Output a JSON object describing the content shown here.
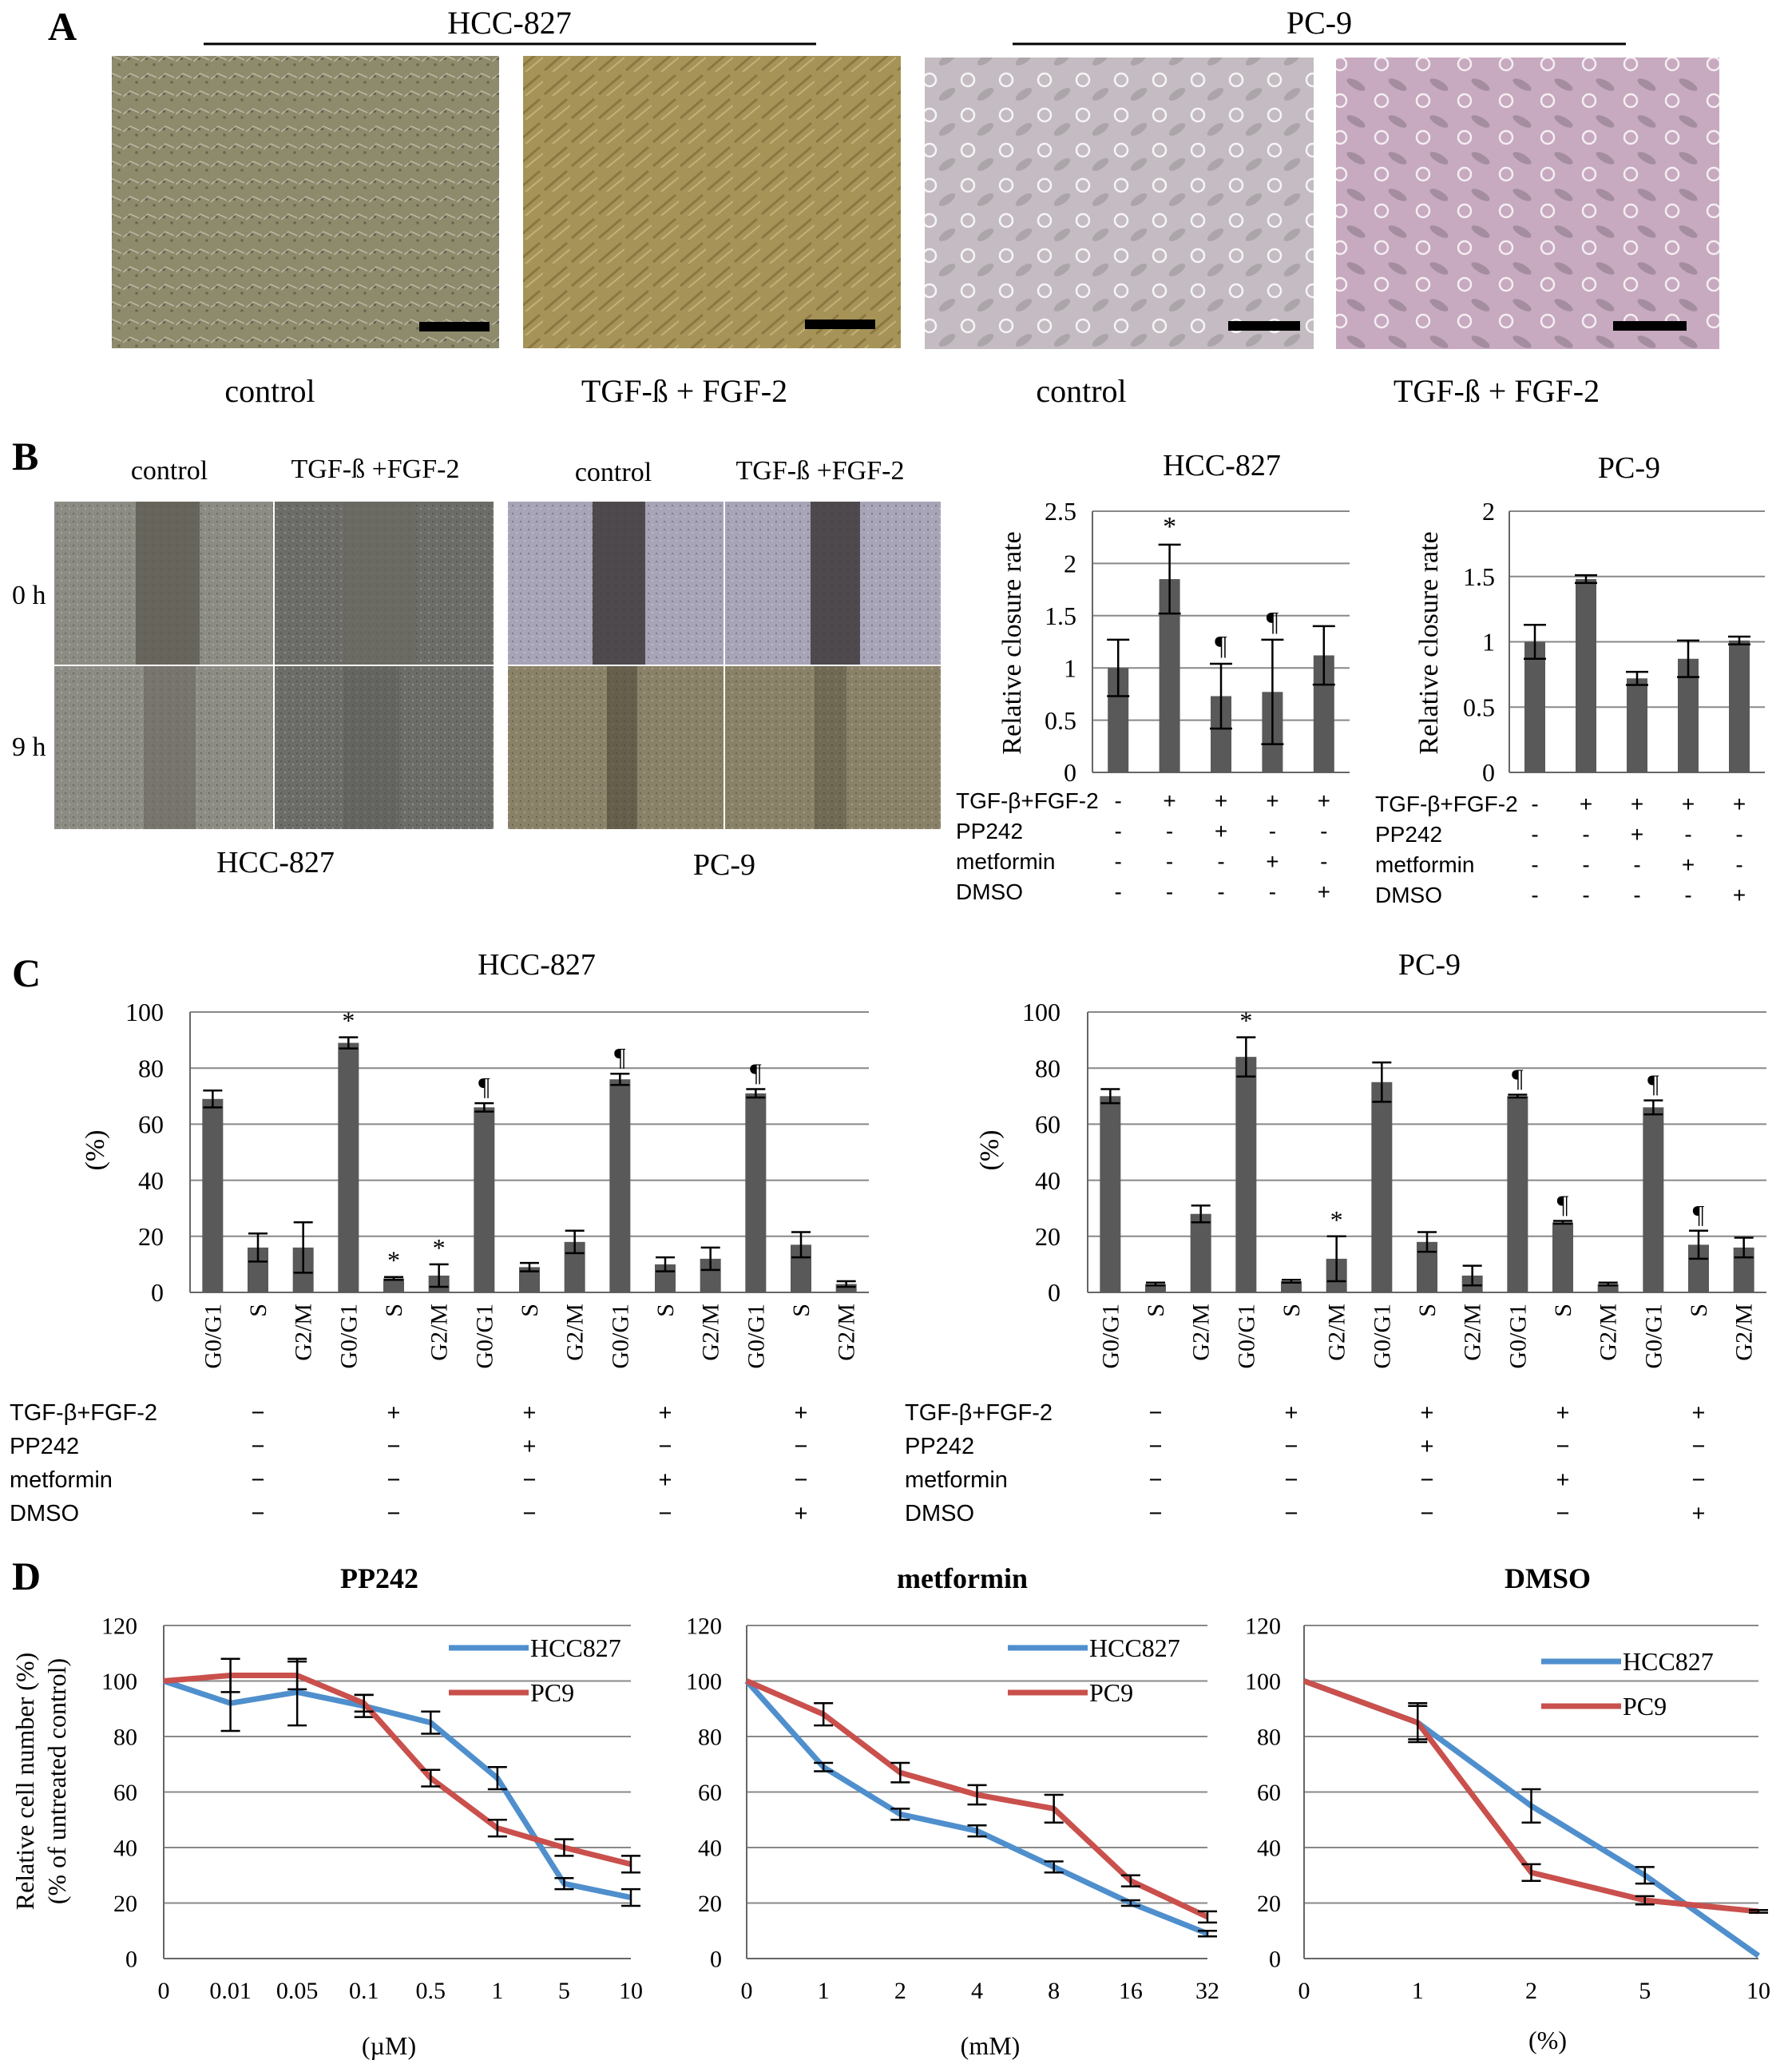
{
  "panel_a": {
    "letter": "A",
    "group_labels": [
      "HCC-827",
      "PC-9"
    ],
    "image_labels": [
      "control",
      "TGF-ß  + FGF-2",
      "control",
      "TGF-ß  + FGF-2"
    ],
    "image_colors": [
      "#8e8a6c",
      "#a69358",
      "#c4bcc2",
      "#c7aabf"
    ]
  },
  "panel_b": {
    "letter": "B",
    "col_labels": [
      "control",
      "TGF-ß +FGF-2",
      "control",
      "TGF-ß +FGF-2"
    ],
    "row_labels": [
      "0 h",
      "9 h"
    ],
    "group_labels": [
      "HCC-827",
      "PC-9"
    ],
    "image_colors": [
      "#8c8c84",
      "#6c6c68",
      "#a8a4b8",
      "#8a8268"
    ]
  },
  "panel_c": {
    "letter": "C"
  },
  "panel_d": {
    "letter": "D"
  },
  "chart_data": [
    {
      "type": "bar",
      "title": "HCC-827",
      "ylabel": "Relative closure rate",
      "ylim": [
        0,
        2.5
      ],
      "yticks": [
        "0",
        "0.5",
        "1",
        "1.5",
        "2",
        "2.5"
      ],
      "values": [
        1.0,
        1.85,
        0.73,
        0.77,
        1.12
      ],
      "errors": [
        0.27,
        0.33,
        0.31,
        0.5,
        0.28
      ],
      "annotations": [
        "",
        "*",
        "¶",
        "¶",
        ""
      ],
      "treatments": [
        {
          "label": "TGF-β+FGF-2",
          "signs": [
            "-",
            "+",
            "+",
            "+",
            "+"
          ]
        },
        {
          "label": "PP242",
          "signs": [
            "-",
            "-",
            "+",
            "-",
            "-"
          ]
        },
        {
          "label": "metformin",
          "signs": [
            "-",
            "-",
            "-",
            "+",
            "-"
          ]
        },
        {
          "label": "DMSO",
          "signs": [
            "-",
            "-",
            "-",
            "-",
            "+"
          ]
        }
      ]
    },
    {
      "type": "bar",
      "title": "PC-9",
      "ylabel": "Relative closure rate",
      "ylim": [
        0,
        2
      ],
      "yticks": [
        "0",
        "0.5",
        "1",
        "1.5",
        "2"
      ],
      "values": [
        1.0,
        1.48,
        0.72,
        0.87,
        1.01
      ],
      "errors": [
        0.13,
        0.03,
        0.05,
        0.14,
        0.03
      ],
      "annotations": [
        "",
        "",
        "",
        "",
        ""
      ],
      "treatments": [
        {
          "label": "TGF-β+FGF-2",
          "signs": [
            "-",
            "+",
            "+",
            "+",
            "+"
          ]
        },
        {
          "label": "PP242",
          "signs": [
            "-",
            "-",
            "+",
            "-",
            "-"
          ]
        },
        {
          "label": "metformin",
          "signs": [
            "-",
            "-",
            "-",
            "+",
            "-"
          ]
        },
        {
          "label": "DMSO",
          "signs": [
            "-",
            "-",
            "-",
            "-",
            "+"
          ]
        }
      ]
    },
    {
      "type": "bar",
      "title": "HCC-827",
      "ylabel": "(%)",
      "ylim": [
        0,
        100
      ],
      "yticks": [
        "0",
        "20",
        "40",
        "60",
        "80",
        "100"
      ],
      "categories": [
        "G0/G1",
        "S",
        "G2/M",
        "G0/G1",
        "S",
        "G2/M",
        "G0/G1",
        "S",
        "G2/M",
        "G0/G1",
        "S",
        "G2/M",
        "G0/G1",
        "S",
        "G2/M"
      ],
      "values": [
        69,
        16,
        16,
        89,
        5,
        6,
        66,
        9,
        18,
        76,
        10,
        12,
        71,
        17,
        3
      ],
      "errors": [
        3,
        5,
        9,
        2,
        0.5,
        4,
        1.5,
        1.5,
        4,
        2,
        2.5,
        4,
        1.5,
        4.5,
        1
      ],
      "annotations": [
        "",
        "",
        "",
        "*",
        "*",
        "*",
        "¶",
        "",
        "",
        "¶",
        "",
        "",
        "¶",
        "",
        ""
      ],
      "treatments": [
        {
          "label": "TGF-β+FGF-2",
          "signs": [
            "−",
            "+",
            "+",
            "+",
            "+"
          ]
        },
        {
          "label": "PP242",
          "signs": [
            "−",
            "−",
            "+",
            "−",
            "−"
          ]
        },
        {
          "label": "metformin",
          "signs": [
            "−",
            "−",
            "−",
            "+",
            "−"
          ]
        },
        {
          "label": "DMSO",
          "signs": [
            "−",
            "−",
            "−",
            "−",
            "+"
          ]
        }
      ]
    },
    {
      "type": "bar",
      "title": "PC-9",
      "ylabel": "(%)",
      "ylim": [
        0,
        100
      ],
      "yticks": [
        "0",
        "20",
        "40",
        "60",
        "80",
        "100"
      ],
      "categories": [
        "G0/G1",
        "S",
        "G2/M",
        "G0/G1",
        "S",
        "G2/M",
        "G0/G1",
        "S",
        "G2/M",
        "G0/G1",
        "S",
        "G2/M",
        "G0/G1",
        "S",
        "G2/M"
      ],
      "values": [
        70,
        3,
        28,
        84,
        4,
        12,
        75,
        18,
        6,
        70,
        25,
        3,
        66,
        17,
        16
      ],
      "errors": [
        2.5,
        0.5,
        3,
        7,
        0.5,
        8,
        7,
        3.5,
        3.5,
        0.5,
        0.5,
        0.5,
        2.5,
        5,
        3.5
      ],
      "annotations": [
        "",
        "",
        "",
        "*",
        "",
        "*",
        "",
        "",
        "",
        "¶",
        "¶",
        "",
        "¶",
        "¶",
        ""
      ],
      "treatments": [
        {
          "label": "TGF-β+FGF-2",
          "signs": [
            "−",
            "+",
            "+",
            "+",
            "+"
          ]
        },
        {
          "label": "PP242",
          "signs": [
            "−",
            "−",
            "+",
            "−",
            "−"
          ]
        },
        {
          "label": "metformin",
          "signs": [
            "−",
            "−",
            "−",
            "+",
            "−"
          ]
        },
        {
          "label": "DMSO",
          "signs": [
            "−",
            "−",
            "−",
            "−",
            "+"
          ]
        }
      ]
    },
    {
      "type": "line",
      "title": "PP242",
      "ylabel": "Relative cell number (%)",
      "ylabel2": "(% of untreated control)",
      "xlabel": "(µM)",
      "ylim": [
        0,
        120
      ],
      "yticks": [
        "0",
        "20",
        "40",
        "60",
        "80",
        "100",
        "120"
      ],
      "categories": [
        "0",
        "0.01",
        "0.05",
        "0.1",
        "0.5",
        "1",
        "5",
        "10"
      ],
      "series": [
        {
          "name": "HCC827",
          "color": "#4f8fcd",
          "values": [
            100,
            92,
            96,
            91,
            85,
            65,
            27,
            22
          ],
          "errors": [
            0,
            10,
            12,
            4,
            4,
            4,
            2,
            3
          ]
        },
        {
          "name": "PC9",
          "color": "#c9504c",
          "values": [
            100,
            102,
            102,
            92,
            65,
            47,
            40,
            34
          ],
          "errors": [
            0,
            6,
            5,
            3,
            3,
            3,
            3,
            3
          ]
        }
      ]
    },
    {
      "type": "line",
      "title": "metformin",
      "xlabel": "(mM)",
      "ylim": [
        0,
        120
      ],
      "yticks": [
        "0",
        "20",
        "40",
        "60",
        "80",
        "100",
        "120"
      ],
      "categories": [
        "0",
        "1",
        "2",
        "4",
        "8",
        "16",
        "32"
      ],
      "series": [
        {
          "name": "HCC827",
          "color": "#4f8fcd",
          "values": [
            100,
            69,
            52,
            46,
            33,
            20,
            9
          ],
          "errors": [
            0,
            1.5,
            2,
            2,
            2,
            1,
            1
          ]
        },
        {
          "name": "PC9",
          "color": "#c9504c",
          "values": [
            100,
            88,
            67,
            59,
            54,
            28,
            15
          ],
          "errors": [
            0,
            4,
            3.5,
            3.5,
            5,
            2,
            2
          ]
        }
      ]
    },
    {
      "type": "line",
      "title": "DMSO",
      "xlabel": "(%)",
      "ylim": [
        0,
        120
      ],
      "yticks": [
        "0",
        "20",
        "40",
        "60",
        "80",
        "100",
        "120"
      ],
      "categories": [
        "0",
        "1",
        "2",
        "5",
        "10"
      ],
      "series": [
        {
          "name": "HCC827",
          "color": "#4f8fcd",
          "values": [
            100,
            85,
            55,
            30,
            1
          ],
          "errors": [
            0,
            7,
            6,
            3,
            0
          ]
        },
        {
          "name": "PC9",
          "color": "#c9504c",
          "values": [
            100,
            85,
            31,
            21,
            17
          ],
          "errors": [
            0,
            6,
            3,
            1.5,
            0.5
          ]
        }
      ]
    }
  ]
}
